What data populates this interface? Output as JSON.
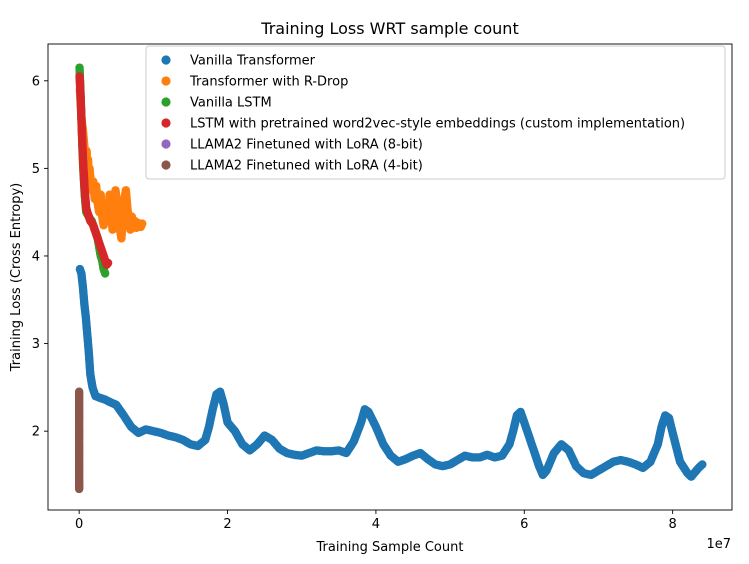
{
  "chart_data": {
    "type": "scatter",
    "title": "Training Loss WRT sample count",
    "xlabel": "Training Sample Count",
    "ylabel": "Training Loss (Cross Entropy)",
    "x_offset_label": "1e7",
    "x_scale": 10000000,
    "xlim": [
      -4200000,
      88000000
    ],
    "ylim": [
      1.1,
      6.42
    ],
    "x_ticks": [
      0,
      20000000,
      40000000,
      60000000,
      80000000
    ],
    "x_tick_labels": [
      "0",
      "2",
      "4",
      "6",
      "8"
    ],
    "y_ticks": [
      2,
      3,
      4,
      5,
      6
    ],
    "y_tick_labels": [
      "2",
      "3",
      "4",
      "5",
      "6"
    ],
    "grid": false,
    "legend_position": "upper-right",
    "series": [
      {
        "name": "Vanilla Transformer",
        "color": "#1f77b4",
        "x": [
          100000,
          300000,
          500000,
          700000,
          900000,
          1100000,
          1300000,
          1500000,
          1800000,
          2200000,
          2800000,
          3500000,
          4200000,
          5000000,
          6000000,
          7000000,
          8000000,
          9000000,
          10000000,
          11000000,
          12000000,
          13000000,
          14000000,
          15000000,
          16000000,
          17000000,
          17500000,
          18000000,
          18500000,
          19000000,
          19500000,
          20000000,
          21000000,
          22000000,
          23000000,
          24000000,
          25000000,
          26000000,
          27000000,
          28000000,
          29000000,
          30000000,
          31000000,
          32000000,
          33000000,
          34000000,
          35000000,
          36000000,
          37000000,
          38000000,
          38500000,
          39000000,
          40000000,
          41000000,
          42000000,
          43000000,
          44000000,
          45000000,
          46000000,
          47000000,
          48000000,
          49000000,
          50000000,
          51000000,
          52000000,
          53000000,
          54000000,
          55000000,
          56000000,
          57000000,
          58000000,
          58500000,
          59000000,
          59500000,
          60000000,
          61000000,
          62000000,
          62500000,
          63000000,
          64000000,
          65000000,
          66000000,
          67000000,
          68000000,
          69000000,
          70000000,
          71000000,
          72000000,
          73000000,
          74000000,
          75000000,
          76000000,
          77000000,
          78000000,
          78500000,
          79000000,
          79500000,
          80000000,
          81000000,
          82000000,
          82500000,
          83000000,
          83500000,
          84000000
        ],
        "y": [
          3.85,
          3.8,
          3.65,
          3.45,
          3.3,
          3.1,
          2.9,
          2.65,
          2.5,
          2.4,
          2.38,
          2.36,
          2.33,
          2.3,
          2.18,
          2.05,
          1.98,
          2.02,
          2.0,
          1.98,
          1.95,
          1.93,
          1.9,
          1.85,
          1.83,
          1.9,
          2.05,
          2.25,
          2.42,
          2.45,
          2.3,
          2.1,
          2.0,
          1.85,
          1.78,
          1.85,
          1.95,
          1.9,
          1.8,
          1.75,
          1.73,
          1.72,
          1.75,
          1.78,
          1.77,
          1.77,
          1.78,
          1.75,
          1.88,
          2.1,
          2.25,
          2.22,
          2.05,
          1.85,
          1.72,
          1.65,
          1.68,
          1.72,
          1.75,
          1.68,
          1.62,
          1.6,
          1.62,
          1.67,
          1.72,
          1.7,
          1.7,
          1.73,
          1.7,
          1.72,
          1.85,
          2.0,
          2.18,
          2.22,
          2.1,
          1.85,
          1.6,
          1.5,
          1.55,
          1.75,
          1.85,
          1.78,
          1.6,
          1.52,
          1.5,
          1.55,
          1.6,
          1.65,
          1.67,
          1.65,
          1.62,
          1.58,
          1.65,
          1.85,
          2.05,
          2.18,
          2.15,
          1.98,
          1.65,
          1.52,
          1.48,
          1.53,
          1.58,
          1.62
        ]
      },
      {
        "name": "Transformer with R-Drop",
        "color": "#ff7f0e",
        "x": [
          100000,
          200000,
          300000,
          400000,
          500000,
          600000,
          700000,
          800000,
          900000,
          1000000,
          1100000,
          1200000,
          1300000,
          1400000,
          1500000,
          1700000,
          1900000,
          2100000,
          2300000,
          2500000,
          2700000,
          2900000,
          3100000,
          3300000,
          3500000,
          3700000,
          3900000,
          4100000,
          4300000,
          4500000,
          4700000,
          4900000,
          5100000,
          5300000,
          5500000,
          5700000,
          5900000,
          6100000,
          6300000,
          6500000,
          6700000,
          6900000,
          7100000,
          7300000,
          7500000,
          7700000,
          7900000,
          8100000,
          8300000,
          8500000
        ],
        "y": [
          5.9,
          5.75,
          5.6,
          5.5,
          5.45,
          5.35,
          5.25,
          5.15,
          5.05,
          5.2,
          4.95,
          5.1,
          4.85,
          5.0,
          4.9,
          4.75,
          4.85,
          4.65,
          4.8,
          4.6,
          4.5,
          4.7,
          4.45,
          4.35,
          4.5,
          4.6,
          4.4,
          4.7,
          4.55,
          4.3,
          4.45,
          4.75,
          4.6,
          4.45,
          4.3,
          4.2,
          4.5,
          4.65,
          4.75,
          4.55,
          4.4,
          4.3,
          4.45,
          4.35,
          4.4,
          4.32,
          4.38,
          4.35,
          4.33,
          4.37
        ]
      },
      {
        "name": "Vanilla LSTM",
        "color": "#2ca02c",
        "x": [
          50000,
          150000,
          250000,
          350000,
          450000,
          550000,
          650000,
          750000,
          850000,
          950000,
          1100000,
          1300000,
          1500000,
          1700000,
          1900000,
          2100000,
          2300000,
          2500000,
          2700000,
          2900000,
          3100000,
          3300000,
          3500000
        ],
        "y": [
          6.15,
          5.95,
          5.7,
          5.45,
          5.2,
          5.0,
          4.85,
          4.7,
          4.6,
          4.5,
          4.48,
          4.45,
          4.42,
          4.4,
          4.35,
          4.3,
          4.25,
          4.2,
          4.1,
          4.0,
          3.95,
          3.85,
          3.8
        ]
      },
      {
        "name": "LSTM with pretrained word2vec-style embeddings (custom implementation)",
        "color": "#d62728",
        "x": [
          50000,
          150000,
          250000,
          350000,
          450000,
          550000,
          650000,
          750000,
          850000,
          950000,
          1100000,
          1300000,
          1500000,
          1700000,
          1900000,
          2100000,
          2300000,
          2500000,
          2700000,
          2900000,
          3100000,
          3300000,
          3500000,
          3700000,
          3900000
        ],
        "y": [
          6.05,
          5.9,
          5.7,
          5.45,
          5.25,
          5.05,
          4.9,
          4.75,
          4.65,
          4.55,
          4.5,
          4.45,
          4.4,
          4.38,
          4.35,
          4.3,
          4.25,
          4.2,
          4.15,
          4.1,
          4.05,
          4.0,
          3.95,
          3.9,
          3.92
        ]
      },
      {
        "name": "LLAMA2 Finetuned with LoRA (8-bit)",
        "color": "#9467bd",
        "x": [],
        "y": []
      },
      {
        "name": "LLAMA2 Finetuned with LoRA (4-bit)",
        "color": "#8c564b",
        "x": [
          0,
          0,
          0,
          0,
          0,
          0,
          0,
          0,
          0,
          0,
          0,
          0,
          0,
          0,
          0,
          0,
          0,
          0,
          0,
          0,
          0,
          0
        ],
        "y": [
          2.45,
          2.4,
          2.3,
          2.2,
          2.1,
          2.0,
          1.95,
          1.9,
          1.85,
          1.8,
          1.75,
          1.7,
          1.65,
          1.6,
          1.55,
          1.5,
          1.45,
          1.42,
          1.4,
          1.38,
          1.36,
          1.34
        ]
      }
    ]
  }
}
